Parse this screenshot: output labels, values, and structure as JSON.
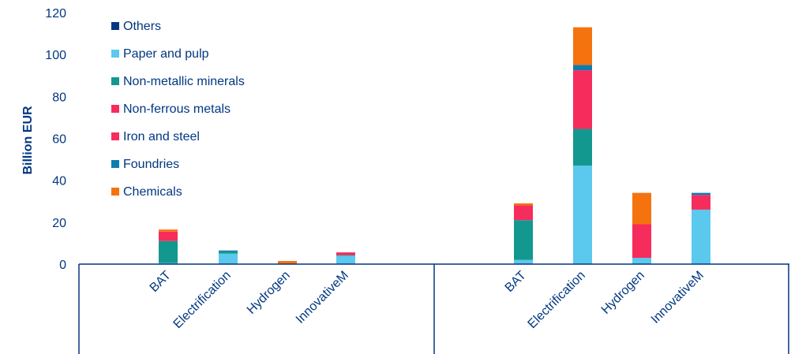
{
  "chart_data": {
    "type": "bar",
    "stacked": true,
    "ylabel": "Billion EUR",
    "ylim": [
      0,
      120
    ],
    "yticks": [
      0,
      20,
      40,
      60,
      80,
      100,
      120
    ],
    "legend_position": "top-left",
    "groups": [
      {
        "categories": [
          "BAT",
          "Electrification",
          "Hydrogen",
          "InnovativeM"
        ]
      },
      {
        "categories": [
          "BAT",
          "Electrification",
          "Hydrogen",
          "InnovativeM"
        ]
      }
    ],
    "series": [
      {
        "name": "Others",
        "color": "#003781",
        "values": [
          [
            0,
            0,
            0,
            0
          ],
          [
            0,
            0,
            0,
            0
          ]
        ]
      },
      {
        "name": "Paper and pulp",
        "color": "#5BC8EE",
        "values": [
          [
            0.5,
            5,
            0,
            4
          ],
          [
            2,
            47,
            3,
            26
          ]
        ]
      },
      {
        "name": "Non-metallic minerals",
        "color": "#13988F",
        "values": [
          [
            10.5,
            1,
            0,
            0.3
          ],
          [
            19,
            17.5,
            0,
            0
          ]
        ]
      },
      {
        "name": "Non-ferrous metals",
        "color": "#F62C5C",
        "values": [
          [
            0,
            0,
            0,
            0
          ],
          [
            0,
            0,
            0,
            0
          ]
        ]
      },
      {
        "name": "Iron and steel",
        "color": "#F62C5C",
        "values": [
          [
            4.5,
            0,
            0,
            1.3
          ],
          [
            7,
            28,
            16,
            7
          ]
        ]
      },
      {
        "name": "Foundries",
        "color": "#0F7CB0",
        "values": [
          [
            0,
            0.5,
            0,
            0
          ],
          [
            0,
            2.5,
            0,
            1
          ]
        ]
      },
      {
        "name": "Chemicals",
        "color": "#F5730E",
        "values": [
          [
            1,
            0,
            1.5,
            0
          ],
          [
            1,
            18,
            15,
            0
          ]
        ]
      }
    ]
  }
}
